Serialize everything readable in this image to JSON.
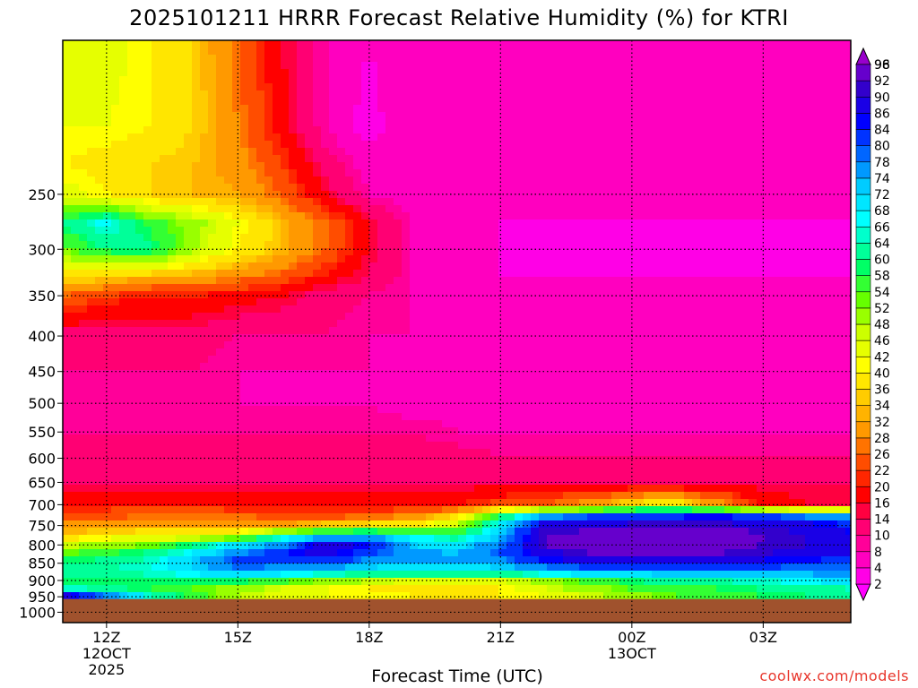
{
  "title": "2025101211 HRRR Forecast Relative Humidity (%) for KTRI",
  "watermark": "coolwx.com/models",
  "chart_data": {
    "type": "heatmap",
    "title": "2025101211 HRRR Forecast Relative Humidity (%) for KTRI",
    "xlabel": "Forecast Time (UTC)",
    "ylabel": "",
    "x_hours": [
      11,
      12,
      13,
      14,
      15,
      16,
      17,
      18,
      19,
      20,
      21,
      22,
      23,
      24,
      25,
      26,
      27,
      28,
      29
    ],
    "y_pressure_hPa": [
      150,
      200,
      225,
      250,
      275,
      300,
      325,
      350,
      400,
      450,
      500,
      550,
      600,
      650,
      700,
      725,
      750,
      775,
      800,
      825,
      850,
      875,
      900,
      925,
      950
    ],
    "z_rh_percent": [
      [
        44,
        44,
        40,
        36,
        26,
        16,
        8,
        4,
        8,
        8,
        8,
        8,
        8,
        8,
        8,
        8,
        8,
        8,
        8
      ],
      [
        42,
        42,
        40,
        36,
        28,
        18,
        8,
        2,
        8,
        8,
        8,
        8,
        8,
        8,
        8,
        8,
        8,
        8,
        8
      ],
      [
        40,
        38,
        36,
        34,
        30,
        22,
        12,
        6,
        6,
        6,
        6,
        6,
        6,
        6,
        6,
        6,
        6,
        6,
        6
      ],
      [
        44,
        40,
        36,
        34,
        32,
        26,
        16,
        8,
        6,
        6,
        6,
        6,
        6,
        6,
        6,
        6,
        6,
        6,
        6
      ],
      [
        60,
        68,
        56,
        50,
        42,
        34,
        26,
        16,
        8,
        6,
        4,
        4,
        4,
        4,
        4,
        4,
        4,
        4,
        4
      ],
      [
        52,
        60,
        62,
        48,
        40,
        34,
        26,
        16,
        8,
        6,
        4,
        4,
        4,
        4,
        4,
        4,
        4,
        4,
        4
      ],
      [
        40,
        38,
        36,
        34,
        30,
        26,
        20,
        14,
        8,
        6,
        4,
        4,
        4,
        4,
        4,
        4,
        4,
        4,
        4
      ],
      [
        26,
        22,
        20,
        20,
        18,
        16,
        12,
        10,
        8,
        6,
        6,
        6,
        6,
        6,
        6,
        6,
        6,
        6,
        6
      ],
      [
        12,
        12,
        12,
        12,
        10,
        10,
        10,
        8,
        8,
        6,
        6,
        6,
        6,
        6,
        6,
        6,
        6,
        6,
        6
      ],
      [
        10,
        10,
        10,
        10,
        8,
        8,
        8,
        8,
        6,
        6,
        6,
        6,
        6,
        6,
        6,
        6,
        6,
        6,
        6
      ],
      [
        8,
        8,
        8,
        8,
        8,
        8,
        8,
        8,
        6,
        6,
        6,
        6,
        6,
        6,
        6,
        6,
        6,
        6,
        6
      ],
      [
        10,
        10,
        10,
        10,
        10,
        10,
        10,
        10,
        10,
        8,
        8,
        8,
        8,
        8,
        8,
        8,
        8,
        8,
        8
      ],
      [
        12,
        12,
        12,
        12,
        12,
        12,
        12,
        12,
        12,
        12,
        10,
        10,
        10,
        10,
        10,
        10,
        10,
        10,
        10
      ],
      [
        14,
        14,
        14,
        14,
        14,
        14,
        14,
        14,
        14,
        14,
        14,
        14,
        14,
        14,
        14,
        14,
        14,
        14,
        14
      ],
      [
        20,
        20,
        20,
        20,
        18,
        18,
        18,
        18,
        18,
        20,
        24,
        26,
        30,
        38,
        40,
        30,
        20,
        16,
        16
      ],
      [
        24,
        24,
        26,
        26,
        26,
        24,
        24,
        24,
        28,
        36,
        58,
        74,
        78,
        80,
        82,
        84,
        80,
        76,
        74
      ],
      [
        30,
        30,
        32,
        30,
        30,
        32,
        36,
        38,
        40,
        48,
        70,
        90,
        90,
        92,
        92,
        92,
        90,
        88,
        84
      ],
      [
        36,
        38,
        40,
        42,
        46,
        62,
        72,
        74,
        66,
        60,
        74,
        92,
        94,
        94,
        94,
        94,
        92,
        90,
        86
      ],
      [
        46,
        50,
        52,
        60,
        70,
        76,
        90,
        84,
        72,
        70,
        78,
        92,
        94,
        94,
        94,
        94,
        92,
        90,
        88
      ],
      [
        54,
        58,
        62,
        70,
        78,
        84,
        88,
        80,
        76,
        74,
        80,
        88,
        92,
        92,
        92,
        92,
        90,
        88,
        86
      ],
      [
        60,
        62,
        66,
        74,
        82,
        82,
        80,
        76,
        74,
        74,
        76,
        82,
        86,
        86,
        86,
        86,
        84,
        82,
        82
      ],
      [
        62,
        64,
        66,
        70,
        74,
        72,
        70,
        68,
        66,
        66,
        68,
        72,
        74,
        76,
        76,
        76,
        76,
        76,
        76
      ],
      [
        58,
        58,
        60,
        60,
        60,
        56,
        52,
        48,
        46,
        44,
        46,
        50,
        56,
        60,
        62,
        64,
        66,
        68,
        70
      ],
      [
        66,
        62,
        58,
        54,
        50,
        46,
        42,
        40,
        38,
        38,
        40,
        46,
        50,
        54,
        56,
        58,
        60,
        62,
        64
      ],
      [
        90,
        80,
        66,
        56,
        48,
        44,
        42,
        42,
        40,
        40,
        40,
        42,
        46,
        50,
        54,
        56,
        58,
        60,
        62
      ]
    ],
    "yticks": [
      "250",
      "300",
      "350",
      "400",
      "450",
      "500",
      "550",
      "600",
      "650",
      "700",
      "750",
      "800",
      "850",
      "900",
      "950",
      "1000"
    ],
    "ytick_values": [
      250,
      300,
      350,
      400,
      450,
      500,
      550,
      600,
      650,
      700,
      750,
      800,
      850,
      900,
      950,
      1000
    ],
    "xticks": [
      {
        "hour": 12,
        "labels": [
          "12Z",
          "12OCT",
          "2025"
        ]
      },
      {
        "hour": 15,
        "labels": [
          "15Z"
        ]
      },
      {
        "hour": 18,
        "labels": [
          "18Z"
        ]
      },
      {
        "hour": 21,
        "labels": [
          "21Z"
        ]
      },
      {
        "hour": 24,
        "labels": [
          "00Z",
          "13OCT"
        ]
      },
      {
        "hour": 27,
        "labels": [
          "03Z"
        ]
      }
    ],
    "xlim_hours": [
      11,
      29
    ],
    "ylim_hPa": [
      150,
      1035
    ],
    "y_scale": "log-pressure",
    "surface_pressure_hPa": 957,
    "grid": "dotted",
    "colorbar_levels": [
      2,
      4,
      8,
      10,
      14,
      16,
      20,
      22,
      26,
      28,
      32,
      34,
      36,
      40,
      42,
      46,
      48,
      52,
      54,
      58,
      60,
      64,
      66,
      68,
      72,
      74,
      78,
      80,
      84,
      86,
      90,
      92,
      96,
      98
    ],
    "colorbar_colors": [
      "#ff00ff",
      "#ff00e6",
      "#ff00bf",
      "#ff0099",
      "#ff0073",
      "#ff0040",
      "#ff0000",
      "#ff2600",
      "#ff4d00",
      "#ff7300",
      "#ff9900",
      "#ffb300",
      "#ffcc00",
      "#ffe600",
      "#ffff00",
      "#e6ff00",
      "#ccff00",
      "#99ff00",
      "#66ff00",
      "#33ff33",
      "#00ff66",
      "#00ff99",
      "#00ffcc",
      "#00ffff",
      "#00e6ff",
      "#00ccff",
      "#0099ff",
      "#0066ff",
      "#0033ff",
      "#0000ff",
      "#1a00e6",
      "#3300cc",
      "#6600cc",
      "#9900cc"
    ],
    "ground_color": "#a0522d"
  }
}
